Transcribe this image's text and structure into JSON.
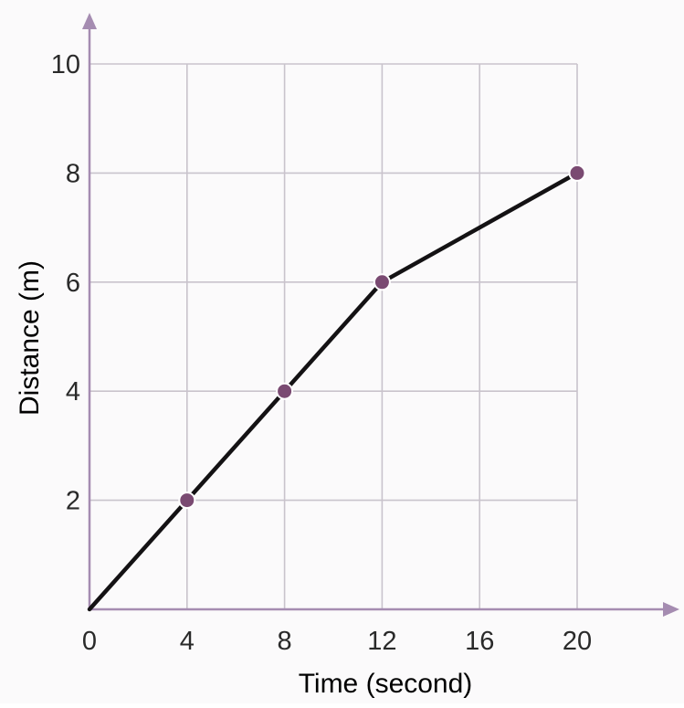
{
  "chart_data": {
    "type": "line",
    "title": "",
    "xlabel": "Time (second)",
    "ylabel": "Distance (m)",
    "xlim": [
      0,
      20
    ],
    "ylim": [
      0,
      10
    ],
    "x_ticks": [
      0,
      4,
      8,
      12,
      16,
      20
    ],
    "y_ticks": [
      2,
      4,
      6,
      8,
      10
    ],
    "grid": true,
    "series": [
      {
        "x": [
          0,
          4,
          8,
          12,
          20
        ],
        "y": [
          0,
          2,
          4,
          6,
          8
        ],
        "markers": [
          4,
          8,
          12,
          20
        ]
      }
    ]
  },
  "colors": {
    "axis": "#a58cb1",
    "grid": "#c9c3cc",
    "line": "#141214",
    "marker": "#7a4a72",
    "marker_edge": "#ffffff",
    "text": "#2a2a2a"
  }
}
